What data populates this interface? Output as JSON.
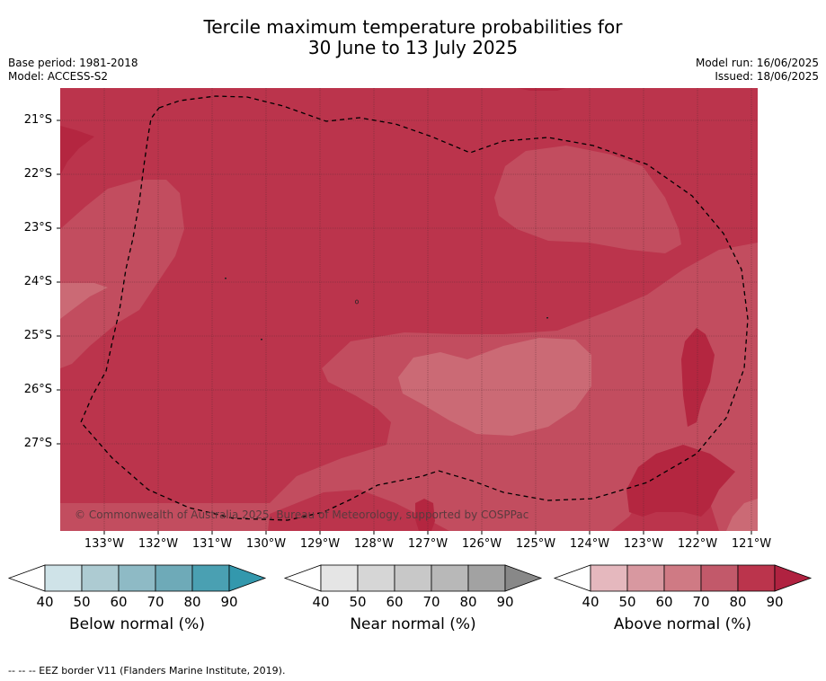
{
  "title": {
    "line1": "Tercile maximum temperature probabilities for",
    "line2": "30 June to 13 July 2025"
  },
  "meta": {
    "base_period": "Base period: 1981-2018",
    "model": "Model: ACCESS-S2",
    "model_run": "Model run: 16/06/2025",
    "issued": "Issued: 18/06/2025"
  },
  "map": {
    "lat_labels": [
      "21°S",
      "22°S",
      "23°S",
      "24°S",
      "25°S",
      "26°S",
      "27°S"
    ],
    "lon_labels": [
      "133°W",
      "132°W",
      "131°W",
      "130°W",
      "129°W",
      "128°W",
      "127°W",
      "126°W",
      "125°W",
      "124°W",
      "123°W",
      "122°W",
      "121°W"
    ],
    "copyright": "© Commonwealth of Australia 2025, Bureau of Meteorology, supported by COSPPac",
    "colors": {
      "80_90": "#bb344c",
      "70_80": "#c24d5f",
      "60_70": "#cb6a75",
      "90_plus": "#b42640",
      "gridline": "#5b2a33"
    }
  },
  "colorbars": [
    {
      "title": "Below normal (%)",
      "ticks": [
        "40",
        "50",
        "60",
        "70",
        "80",
        "90"
      ],
      "colors": [
        "#ffffff",
        "#cfe3e8",
        "#adcbd2",
        "#8ebac5",
        "#6eaab8",
        "#4aa0b2",
        "#3398ad"
      ]
    },
    {
      "title": "Near normal (%)",
      "ticks": [
        "40",
        "50",
        "60",
        "70",
        "80",
        "90"
      ],
      "colors": [
        "#ffffff",
        "#e5e5e5",
        "#d6d6d6",
        "#c8c8c8",
        "#b8b8b8",
        "#a2a2a2",
        "#888888"
      ]
    },
    {
      "title": "Above normal (%)",
      "ticks": [
        "40",
        "50",
        "60",
        "70",
        "80",
        "90"
      ],
      "colors": [
        "#ffffff",
        "#e5b8be",
        "#d898a0",
        "#cf7a84",
        "#c2596a",
        "#bb344c",
        "#b02240"
      ]
    }
  ],
  "footer": "--  --  -- EEZ border V11 (Flanders Marine Institute, 2019)."
}
